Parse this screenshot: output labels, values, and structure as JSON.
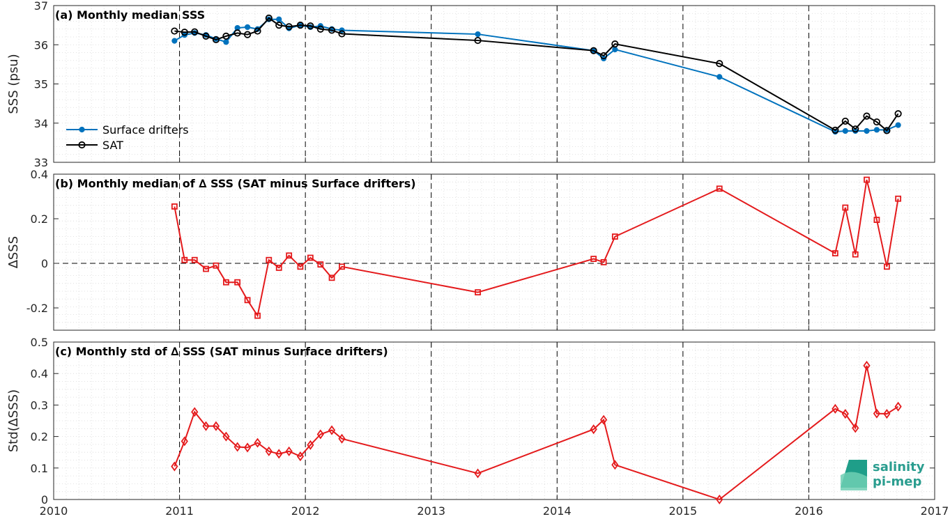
{
  "logo": {
    "line1": "salinity",
    "line2": "pi-mep"
  },
  "chart_data": [
    {
      "type": "line",
      "title": "(a) Monthly median SSS",
      "ylabel": "SSS (psu)",
      "xlim": [
        2010,
        2017
      ],
      "ylim": [
        33,
        37
      ],
      "yticks": [
        "33",
        "34",
        "35",
        "36",
        "37"
      ],
      "grid": true,
      "legend_position": "lower-left",
      "series": [
        {
          "name": "Surface drifters",
          "color": "#0072BD",
          "marker": "dot",
          "x": [
            2010.96,
            2011.04,
            2011.12,
            2011.21,
            2011.29,
            2011.37,
            2011.46,
            2011.54,
            2011.62,
            2011.71,
            2011.79,
            2011.87,
            2011.96,
            2012.04,
            2012.12,
            2012.21,
            2012.29,
            2013.37,
            2014.29,
            2014.37,
            2014.46,
            2015.29,
            2016.21,
            2016.29,
            2016.37,
            2016.46,
            2016.54,
            2016.62,
            2016.71
          ],
          "values": [
            36.1,
            36.25,
            36.3,
            36.25,
            36.15,
            36.07,
            36.43,
            36.45,
            36.4,
            36.65,
            36.65,
            36.42,
            36.5,
            36.45,
            36.48,
            36.4,
            36.37,
            36.27,
            35.85,
            35.65,
            35.88,
            35.18,
            33.78,
            33.8,
            33.8,
            33.8,
            33.83,
            33.83,
            33.95
          ]
        },
        {
          "name": "SAT",
          "color": "#000000",
          "marker": "circle",
          "x": [
            2010.96,
            2011.04,
            2011.12,
            2011.21,
            2011.29,
            2011.37,
            2011.46,
            2011.54,
            2011.62,
            2011.71,
            2011.79,
            2011.87,
            2011.96,
            2012.04,
            2012.12,
            2012.21,
            2012.29,
            2013.37,
            2014.29,
            2014.37,
            2014.46,
            2015.29,
            2016.21,
            2016.29,
            2016.37,
            2016.46,
            2016.54,
            2016.62,
            2016.71
          ],
          "values": [
            36.35,
            36.32,
            36.33,
            36.22,
            36.13,
            36.22,
            36.3,
            36.26,
            36.35,
            36.68,
            36.5,
            36.46,
            36.5,
            36.48,
            36.4,
            36.37,
            36.28,
            36.11,
            35.85,
            35.72,
            36.02,
            35.52,
            33.82,
            34.05,
            33.85,
            34.18,
            34.03,
            33.81,
            34.24
          ]
        }
      ]
    },
    {
      "type": "line",
      "title": "(b) Monthly median of ∆ SSS (SAT minus Surface drifters)",
      "ylabel": "∆SSS",
      "xlim": [
        2010,
        2017
      ],
      "ylim": [
        -0.3,
        0.4
      ],
      "yticks": [
        "-0.2",
        "0",
        "0.2",
        "0.4"
      ],
      "grid": true,
      "series": [
        {
          "color": "#E41A1C",
          "marker": "square",
          "x": [
            2010.96,
            2011.04,
            2011.12,
            2011.21,
            2011.29,
            2011.37,
            2011.46,
            2011.54,
            2011.62,
            2011.71,
            2011.79,
            2011.87,
            2011.96,
            2012.04,
            2012.12,
            2012.21,
            2012.29,
            2013.37,
            2014.29,
            2014.37,
            2014.46,
            2015.29,
            2016.21,
            2016.29,
            2016.37,
            2016.46,
            2016.54,
            2016.62,
            2016.71
          ],
          "values": [
            0.255,
            0.015,
            0.015,
            -0.025,
            -0.01,
            -0.085,
            -0.085,
            -0.165,
            -0.235,
            0.015,
            -0.02,
            0.035,
            -0.015,
            0.025,
            -0.005,
            -0.065,
            -0.015,
            -0.13,
            0.02,
            0.005,
            0.12,
            0.335,
            0.045,
            0.25,
            0.04,
            0.375,
            0.195,
            -0.015,
            0.29
          ]
        }
      ]
    },
    {
      "type": "line",
      "title": "(c) Monthly std of ∆ SSS (SAT minus Surface drifters)",
      "ylabel": "Std(∆SSS)",
      "xlim": [
        2010,
        2017
      ],
      "ylim": [
        0,
        0.5
      ],
      "yticks": [
        "0",
        "0.1",
        "0.2",
        "0.3",
        "0.4",
        "0.5"
      ],
      "xticks": [
        "2010",
        "2011",
        "2012",
        "2013",
        "2014",
        "2015",
        "2016",
        "2017"
      ],
      "grid": true,
      "series": [
        {
          "color": "#E41A1C",
          "marker": "diamond",
          "x": [
            2010.96,
            2011.04,
            2011.12,
            2011.21,
            2011.29,
            2011.37,
            2011.46,
            2011.54,
            2011.62,
            2011.71,
            2011.79,
            2011.87,
            2011.96,
            2012.04,
            2012.12,
            2012.21,
            2012.29,
            2013.37,
            2014.29,
            2014.37,
            2014.46,
            2015.29,
            2016.21,
            2016.29,
            2016.37,
            2016.46,
            2016.54,
            2016.62,
            2016.71
          ],
          "values": [
            0.105,
            0.185,
            0.278,
            0.233,
            0.233,
            0.2,
            0.167,
            0.165,
            0.18,
            0.153,
            0.145,
            0.153,
            0.137,
            0.173,
            0.207,
            0.22,
            0.193,
            0.083,
            0.223,
            0.253,
            0.11,
            0.0,
            0.288,
            0.272,
            0.227,
            0.425,
            0.273,
            0.272,
            0.295
          ]
        }
      ]
    }
  ]
}
